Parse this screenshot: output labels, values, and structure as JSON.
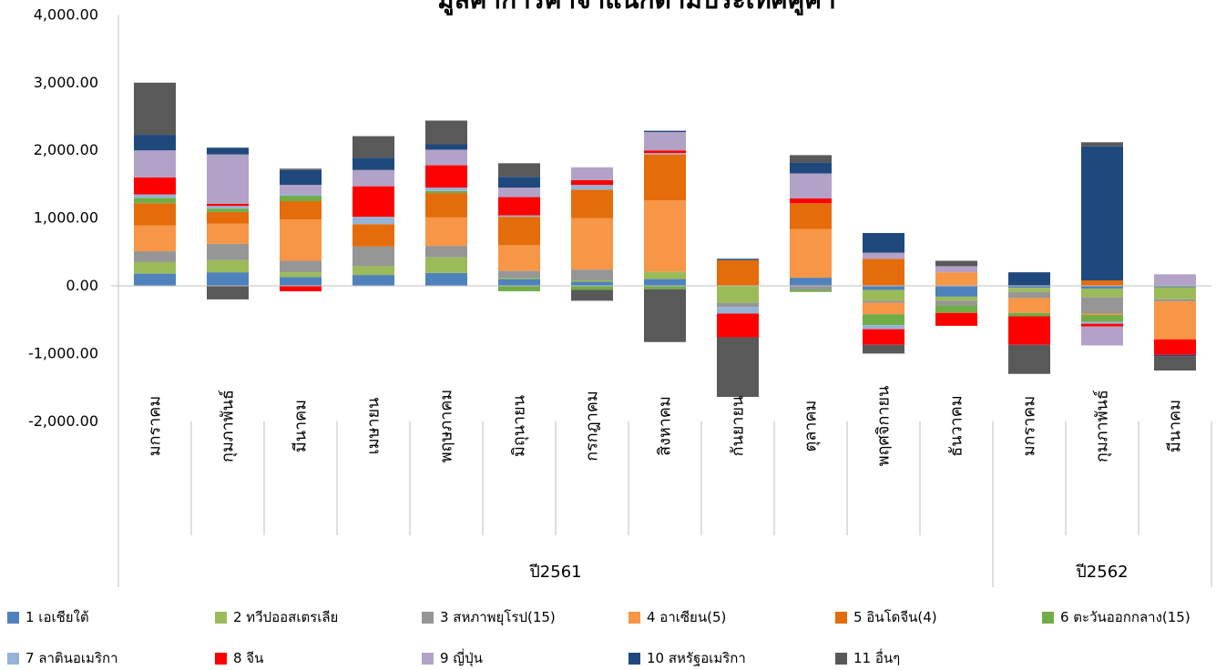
{
  "chart_data": {
    "type": "bar",
    "stacked": true,
    "title": "มูลค่าการค้าจำแนกตามประเทศคู่ค้า",
    "ylim": [
      -2000,
      4000
    ],
    "yticks": [
      "4,000.00",
      "3,000.00",
      "2,000.00",
      "1,000.00",
      "0.00",
      "-1,000.00",
      "-2,000.00"
    ],
    "ytick_values": [
      4000,
      3000,
      2000,
      1000,
      0,
      -1000,
      -2000
    ],
    "categories": [
      "มกราคม",
      "กุมภาพันธ์",
      "มีนาคม",
      "เมษายน",
      "พฤษภาคม",
      "มิถุนายน",
      "กรกฎาคม",
      "สิงหาคม",
      "กันยายน",
      "ตุลาคม",
      "พฤศจิกายน",
      "ธันวาคม",
      "มกราคม",
      "กุมภาพันธ์",
      "มีนาคม"
    ],
    "groups": [
      {
        "label": "ปี2561",
        "count": 12
      },
      {
        "label": "ปี2562",
        "count": 3
      }
    ],
    "series": [
      {
        "name": "1 เอเชียใต้",
        "color": "#4f81bd",
        "values": [
          180,
          200,
          130,
          160,
          190,
          100,
          60,
          100,
          0,
          120,
          -60,
          -160,
          -30,
          -40,
          -20
        ]
      },
      {
        "name": "2 ทวีปออสเตรเลีย",
        "color": "#9bbb59",
        "values": [
          170,
          180,
          70,
          130,
          230,
          20,
          20,
          110,
          -250,
          0,
          -160,
          -60,
          -60,
          -130,
          -180
        ]
      },
      {
        "name": "3 สหภาพยุโรป(15)",
        "color": "#969696",
        "values": [
          160,
          240,
          170,
          290,
          170,
          100,
          160,
          0,
          -60,
          -60,
          -30,
          -70,
          -90,
          -240,
          -30
        ]
      },
      {
        "name": "4 อาเซียน(5)",
        "color": "#f79646",
        "values": [
          380,
          300,
          610,
          0,
          420,
          380,
          760,
          1050,
          0,
          720,
          -170,
          200,
          -220,
          -20,
          -560
        ]
      },
      {
        "name": "5 อินโดจีน(4)",
        "color": "#e46c0a",
        "values": [
          330,
          170,
          270,
          330,
          360,
          420,
          420,
          680,
          380,
          380,
          400,
          0,
          0,
          80,
          0
        ]
      },
      {
        "name": "6 ตะวันออกกลาง(15)",
        "color": "#70ad47",
        "values": [
          80,
          50,
          80,
          0,
          30,
          -80,
          -60,
          -50,
          0,
          -30,
          -160,
          -110,
          -50,
          -100,
          0
        ]
      },
      {
        "name": "7 ลาตินอเมริกา",
        "color": "#95b3d7",
        "values": [
          50,
          40,
          20,
          110,
          50,
          20,
          70,
          20,
          -100,
          0,
          -60,
          0,
          0,
          -30,
          0
        ]
      },
      {
        "name": "8 จีน",
        "color": "#ff0000",
        "values": [
          250,
          30,
          -80,
          450,
          330,
          270,
          70,
          40,
          -350,
          70,
          -230,
          -190,
          -420,
          -40,
          -230
        ]
      },
      {
        "name": "9 ญี่ปุ่น",
        "color": "#b3a2c7",
        "values": [
          400,
          730,
          140,
          240,
          230,
          140,
          190,
          270,
          0,
          370,
          90,
          90,
          0,
          -280,
          170
        ]
      },
      {
        "name": "10 สหรัฐอเมริกา",
        "color": "#1f497d",
        "values": [
          230,
          100,
          220,
          180,
          80,
          160,
          0,
          20,
          20,
          160,
          290,
          0,
          200,
          1980,
          -20
        ]
      },
      {
        "name": "11 อื่นๆ",
        "color": "#595959",
        "values": [
          770,
          -200,
          20,
          320,
          350,
          200,
          -160,
          -780,
          -880,
          110,
          -130,
          80,
          -430,
          60,
          -210
        ]
      }
    ]
  }
}
